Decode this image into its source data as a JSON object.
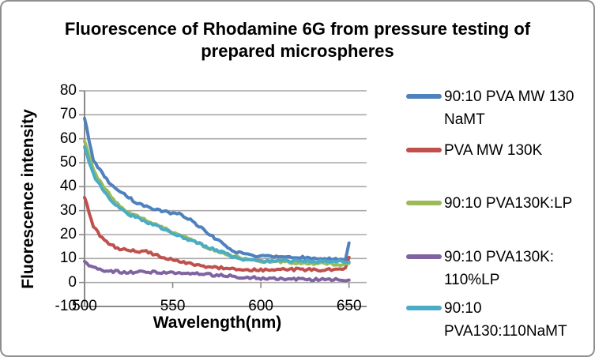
{
  "figure": {
    "title_lines": {
      "line1": "Fluorescence of Rhodamine 6G from pressure testing of",
      "line2": "prepared microspheres"
    }
  },
  "chart_data": {
    "type": "line",
    "title": "Fluorescence of Rhodamine 6G from pressure testing of prepared microspheres",
    "xlabel": "Wavelength(nm)",
    "ylabel": "Fluorescence intensity",
    "xlim": [
      500,
      660
    ],
    "ylim": [
      -10,
      80
    ],
    "x_ticks": [
      500,
      550,
      600,
      650
    ],
    "y_ticks": [
      -10,
      0,
      10,
      20,
      30,
      40,
      50,
      60,
      70,
      80
    ],
    "grid": "horizontal-only",
    "legend_position": "right",
    "x": [
      500,
      505,
      510,
      515,
      520,
      525,
      530,
      535,
      540,
      545,
      550,
      555,
      560,
      565,
      570,
      575,
      580,
      585,
      590,
      595,
      600,
      605,
      610,
      615,
      620,
      625,
      630,
      635,
      640,
      645,
      648,
      650
    ],
    "series": [
      {
        "name": "90:10 PVA MW 130 NaMT",
        "color": "#4F81BD",
        "values": [
          68.5,
          51,
          45.5,
          41,
          38,
          35.5,
          33,
          31.5,
          30.5,
          29.5,
          29,
          28.3,
          26,
          23.5,
          20.7,
          18,
          15.5,
          13,
          11.8,
          11,
          11,
          11.2,
          11,
          10.8,
          10.8,
          10.3,
          10,
          10,
          9.8,
          9.6,
          9.5,
          16.5
        ]
      },
      {
        "name": "PVA MW 130K",
        "color": "#C0504D",
        "values": [
          35.5,
          23.5,
          18.5,
          15.8,
          14,
          13.5,
          13,
          12.8,
          11.5,
          10.3,
          9.3,
          8.5,
          7.8,
          7,
          6.4,
          6.2,
          5.9,
          5.6,
          5.3,
          5.2,
          5.2,
          5.5,
          5.7,
          5.5,
          5.4,
          5.4,
          5.3,
          5.3,
          5.5,
          5.7,
          6,
          10.5
        ]
      },
      {
        "name": "90:10 PVA130K:LP",
        "color": "#9BBB59",
        "values": [
          59,
          47,
          40.5,
          36,
          32,
          29.3,
          27.6,
          26,
          24.3,
          22.7,
          21,
          19.4,
          17.8,
          16.1,
          14.5,
          13.3,
          12.2,
          11,
          10,
          9.4,
          8.9,
          8.7,
          8.6,
          8.6,
          8.2,
          8.1,
          8,
          8,
          7.8,
          7.6,
          7.6,
          8
        ]
      },
      {
        "name": "90:10 PVA130K: 110%LP",
        "color": "#8064A2",
        "values": [
          8.8,
          6,
          5.2,
          4.7,
          4.4,
          4.3,
          4.3,
          4.4,
          4.3,
          4.1,
          4.1,
          4.2,
          3.9,
          3.6,
          3.3,
          3,
          2.8,
          2.5,
          2.2,
          2,
          1.8,
          1.7,
          1.6,
          1.5,
          1.4,
          1.3,
          1.3,
          1.2,
          1.2,
          1.1,
          1,
          1
        ]
      },
      {
        "name": "90:10 PVA130:110NaMT",
        "color": "#4BACC6",
        "values": [
          56.5,
          45,
          39,
          34.5,
          31,
          28.5,
          27,
          25.3,
          23.7,
          22.2,
          20.7,
          19.2,
          17.7,
          16.2,
          14.7,
          13.4,
          12,
          10.5,
          9.5,
          9,
          8.8,
          9,
          9.1,
          9.1,
          9,
          9,
          8.9,
          8.8,
          8.8,
          8.6,
          8.5,
          8.5
        ]
      }
    ]
  }
}
